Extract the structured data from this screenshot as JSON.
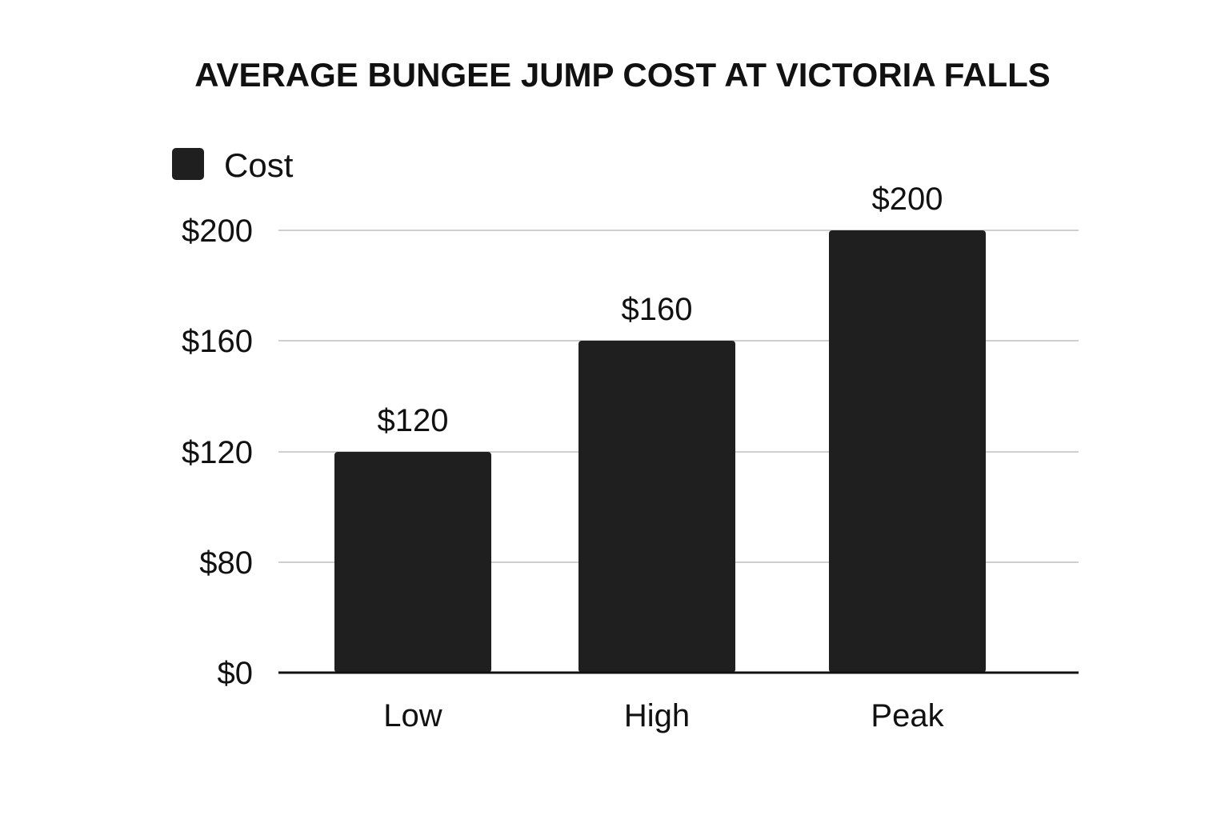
{
  "chart_data": {
    "type": "bar",
    "title": "AVERAGE BUNGEE JUMP COST AT VICTORIA FALLS",
    "categories": [
      "Low",
      "High",
      "Peak"
    ],
    "series": [
      {
        "name": "Cost",
        "values": [
          120,
          160,
          200
        ],
        "color": "#1f1f1f"
      }
    ],
    "data_labels": [
      "$120",
      "$160",
      "$200"
    ],
    "y_ticks": [
      0,
      80,
      120,
      160,
      200
    ],
    "y_tick_labels": [
      "$0",
      "$80",
      "$120",
      "$160",
      "$200"
    ],
    "legend": {
      "placement": "top-left"
    },
    "grid": true,
    "xlabel": "",
    "ylabel": ""
  }
}
